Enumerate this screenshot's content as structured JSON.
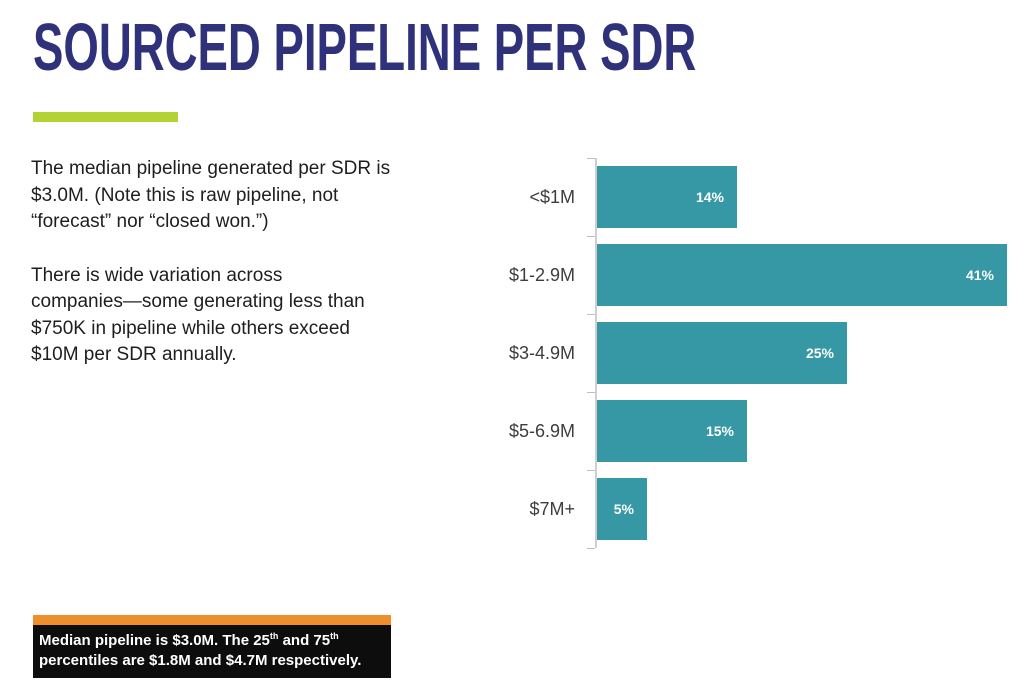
{
  "header": {
    "title": "SOURCED PIPELINE PER SDR"
  },
  "body": {
    "paragraph_1": "The median pipeline generated per SDR is\n$3.0M. (Note this is raw pipeline, not\n“forecast” nor “closed won.”)",
    "paragraph_2": "There is wide variation across\ncompanies—some generating less than\n$750K in pipeline while others exceed\n$10M per SDR annually."
  },
  "chart_data": {
    "type": "bar",
    "orientation": "horizontal",
    "categories": [
      "<$1M",
      "$1-2.9M",
      "$3-4.9M",
      "$5-6.9M",
      "$7M+"
    ],
    "values": [
      14,
      41,
      25,
      15,
      5
    ],
    "value_labels": [
      "14%",
      "41%",
      "25%",
      "15%",
      "5%"
    ],
    "unit": "%",
    "xlim": [
      0,
      41
    ],
    "grid": false,
    "legend": false,
    "bar_color": "#3598a4",
    "value_label_position": "inside-end"
  },
  "callout": {
    "line1_t1": "Median pipeline is $3.0M. The 25",
    "line1_sup1": "th",
    "line1_t2": " and 75",
    "line1_sup2": "th",
    "line2": "percentiles are $1.8M and $4.7M respectively."
  },
  "colors": {
    "title_navy": "#2f327a",
    "accent_green": "#b2d235",
    "bar_teal": "#3598a4",
    "callout_orange": "#ef8e2d",
    "callout_black": "#0d0d0d",
    "axis_gray": "#cfcfcf",
    "label_gray": "#3d3d3d",
    "text_dark": "#1e1e1e"
  }
}
